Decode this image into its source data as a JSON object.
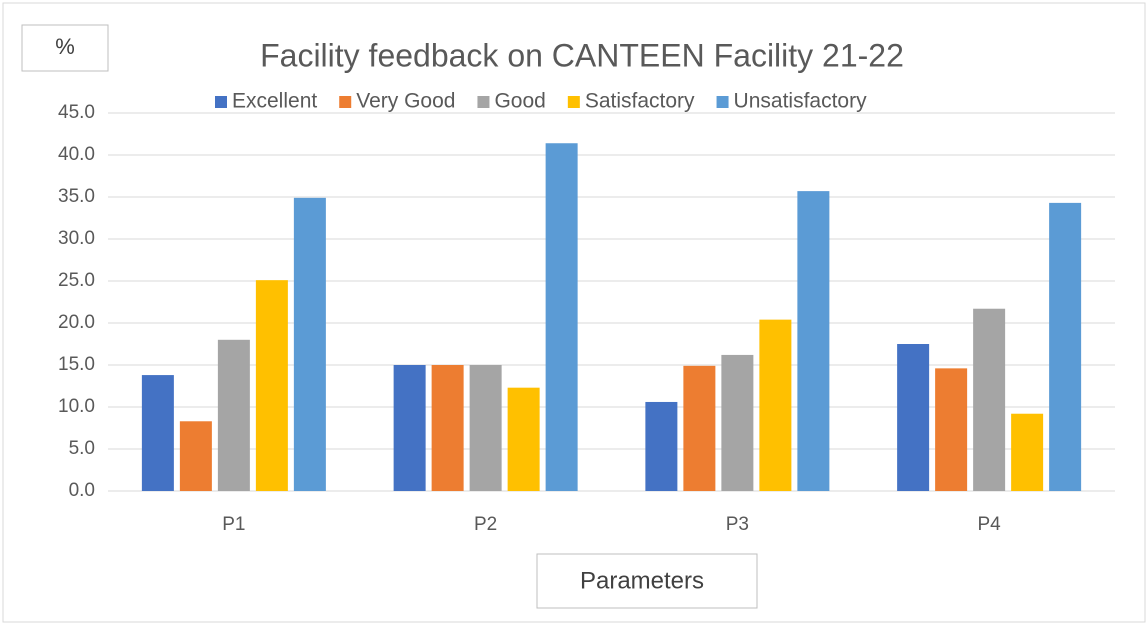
{
  "chart_data": {
    "type": "bar",
    "title": "Facility feedback on CANTEEN Facility 21-22",
    "y_label": "%",
    "x_label": "Parameters",
    "categories": [
      "P1",
      "P2",
      "P3",
      "P4"
    ],
    "series": [
      {
        "name": "Excellent",
        "color": "#4472c4",
        "values": [
          13.8,
          15.0,
          10.6,
          17.5
        ]
      },
      {
        "name": "Very Good",
        "color": "#ed7d31",
        "values": [
          8.3,
          15.0,
          14.9,
          14.6
        ]
      },
      {
        "name": "Good",
        "color": "#a5a5a5",
        "values": [
          18.0,
          15.0,
          16.2,
          21.7
        ]
      },
      {
        "name": "Satisfactory",
        "color": "#ffc000",
        "values": [
          25.1,
          12.3,
          20.4,
          9.2
        ]
      },
      {
        "name": "Unsatisfactory",
        "color": "#5b9bd5",
        "values": [
          34.9,
          41.4,
          35.7,
          34.3
        ]
      }
    ],
    "ylim": [
      0,
      45
    ],
    "yticks": [
      {
        "value": 0,
        "label": "0.0"
      },
      {
        "value": 5,
        "label": "5.0"
      },
      {
        "value": 10,
        "label": "10.0"
      },
      {
        "value": 15,
        "label": "15.0"
      },
      {
        "value": 20,
        "label": "20.0"
      },
      {
        "value": 25,
        "label": "25.0"
      },
      {
        "value": 30,
        "label": "30.0"
      },
      {
        "value": 35,
        "label": "35.0"
      },
      {
        "value": 40,
        "label": "40.0"
      },
      {
        "value": 45,
        "label": "45.0"
      }
    ],
    "grid": true,
    "legend": "top"
  }
}
